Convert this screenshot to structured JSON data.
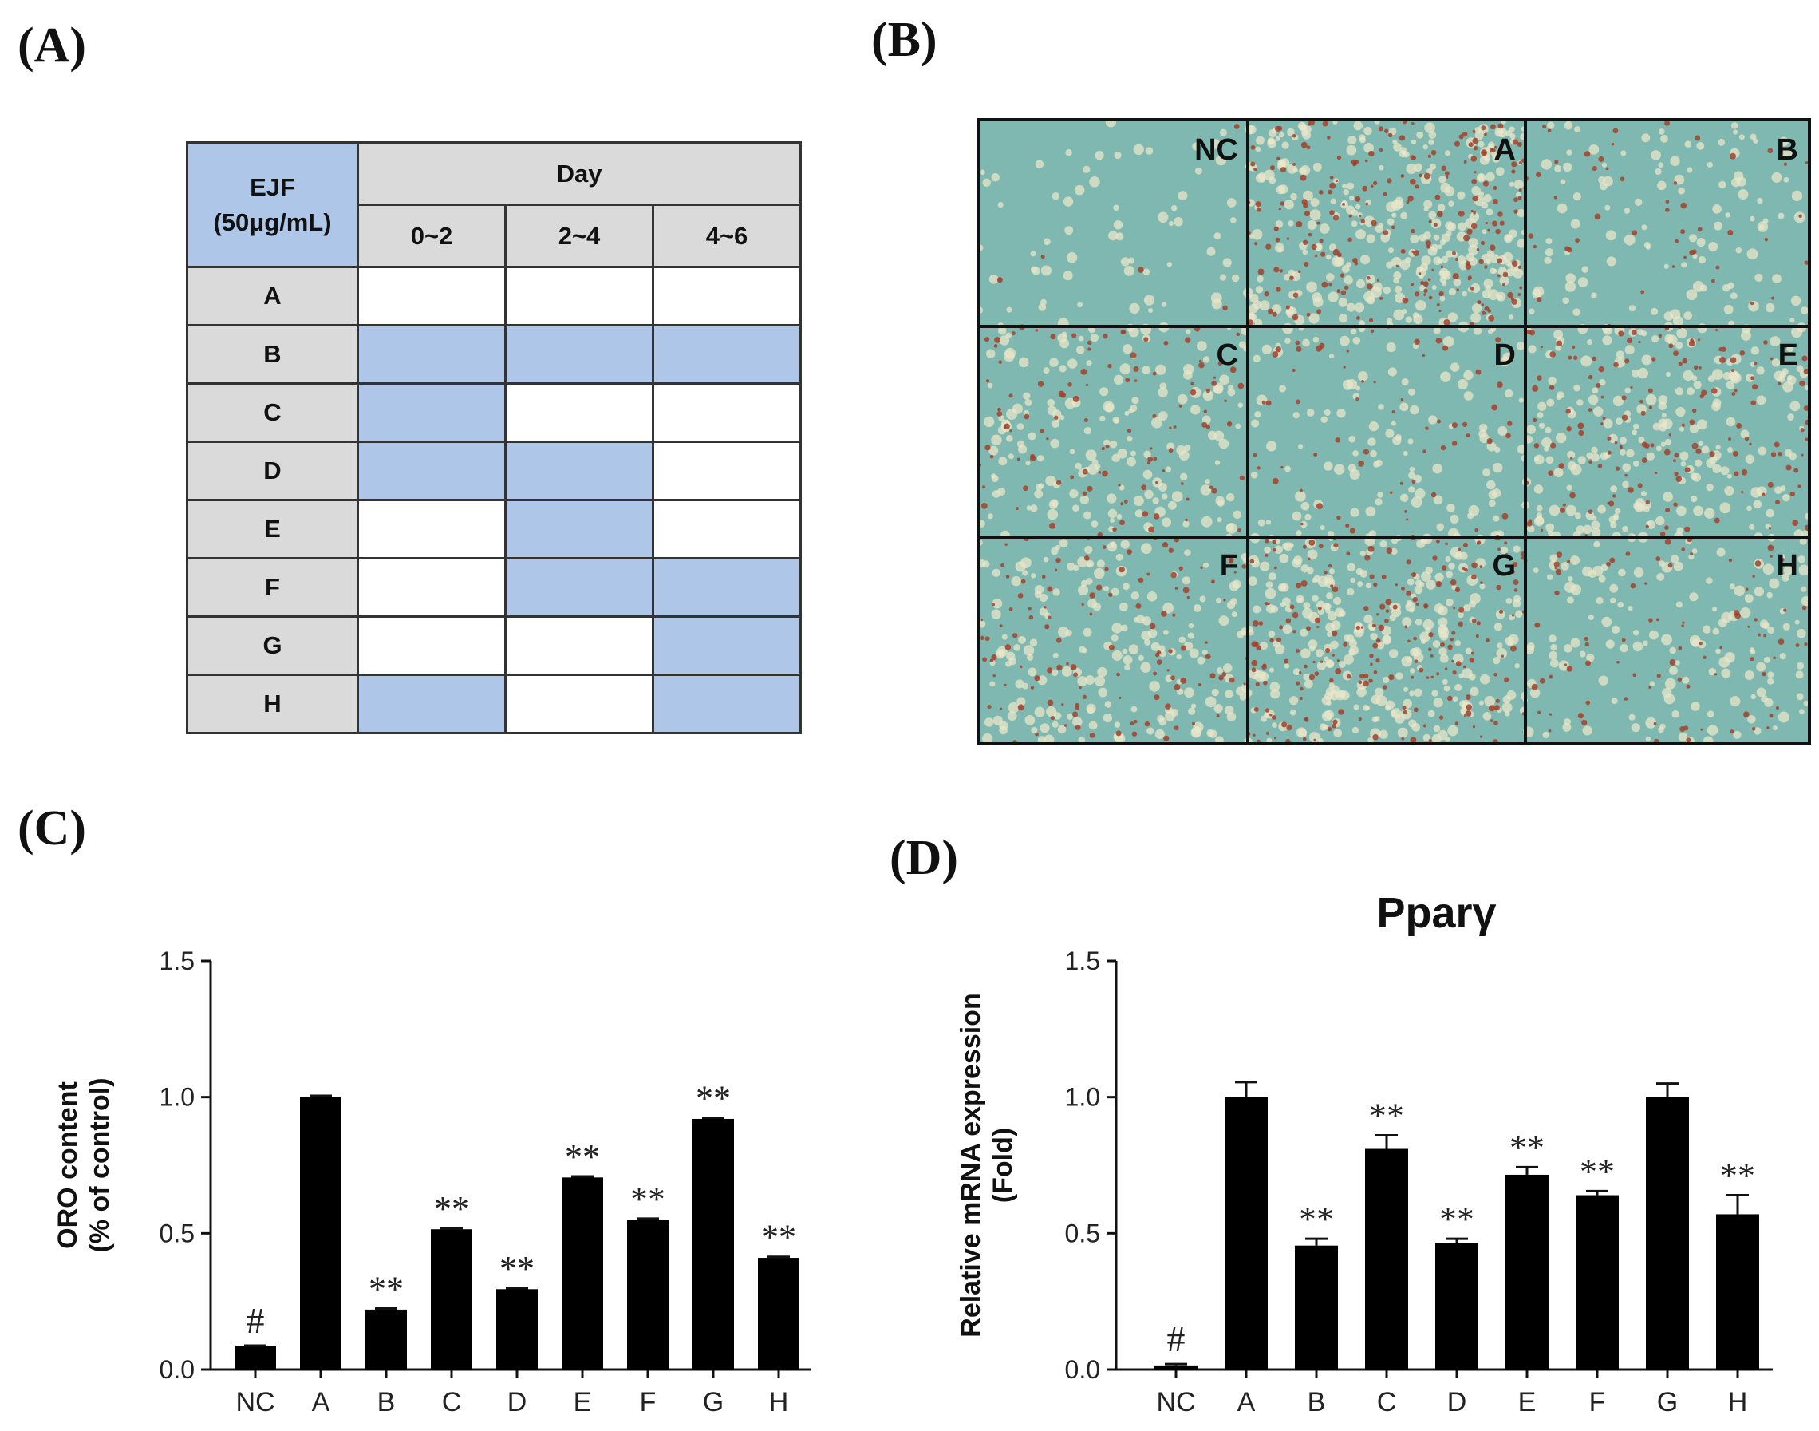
{
  "panels": {
    "a": "(A)",
    "b": "(B)",
    "c": "(C)",
    "d": "(D)"
  },
  "table": {
    "corner_line1": "EJF",
    "corner_line2": "(50μg/mL)",
    "day_header": "Day",
    "periods": [
      "0~2",
      "2~4",
      "4~6"
    ],
    "rows": [
      {
        "label": "A",
        "treated": [
          false,
          false,
          false
        ]
      },
      {
        "label": "B",
        "treated": [
          true,
          true,
          true
        ]
      },
      {
        "label": "C",
        "treated": [
          true,
          false,
          false
        ]
      },
      {
        "label": "D",
        "treated": [
          true,
          true,
          false
        ]
      },
      {
        "label": "E",
        "treated": [
          false,
          true,
          false
        ]
      },
      {
        "label": "F",
        "treated": [
          false,
          true,
          true
        ]
      },
      {
        "label": "G",
        "treated": [
          false,
          false,
          true
        ]
      },
      {
        "label": "H",
        "treated": [
          true,
          false,
          true
        ]
      }
    ],
    "colors": {
      "treated": "#aec6e8",
      "header": "#dadada"
    }
  },
  "micrographs": {
    "labels": [
      "NC",
      "A",
      "B",
      "C",
      "D",
      "E",
      "F",
      "G",
      "H"
    ],
    "stain_density": [
      0.02,
      0.95,
      0.2,
      0.45,
      0.25,
      0.65,
      0.5,
      0.9,
      0.35
    ],
    "colors": {
      "background": "#7fb8b0",
      "cell": "#e9e6c9",
      "lipid": "#a4402a"
    }
  },
  "chart_data": [
    {
      "type": "bar",
      "panel": "C",
      "title": "",
      "categories": [
        "NC",
        "A",
        "B",
        "C",
        "D",
        "E",
        "F",
        "G",
        "H"
      ],
      "values": [
        0.085,
        1.0,
        0.22,
        0.515,
        0.295,
        0.705,
        0.55,
        0.92,
        0.41
      ],
      "errors": [
        0.003,
        0.005,
        0.004,
        0.004,
        0.004,
        0.004,
        0.004,
        0.004,
        0.004
      ],
      "annotations": [
        "#",
        "",
        "**",
        "**",
        "**",
        "**",
        "**",
        "**",
        "**"
      ],
      "ylabel_line1": "ORO content",
      "ylabel_line2": "(% of control)",
      "xlabel": "",
      "ylim": [
        0,
        1.5
      ],
      "yticks": [
        "0.0",
        "0.5",
        "1.0",
        "1.5"
      ],
      "bar_color": "#000000"
    },
    {
      "type": "bar",
      "panel": "D",
      "title": "Pparγ",
      "categories": [
        "NC",
        "A",
        "B",
        "C",
        "D",
        "E",
        "F",
        "G",
        "H"
      ],
      "values": [
        0.015,
        1.0,
        0.455,
        0.81,
        0.465,
        0.715,
        0.64,
        1.0,
        0.57
      ],
      "errors": [
        0.005,
        0.055,
        0.025,
        0.05,
        0.015,
        0.028,
        0.015,
        0.05,
        0.07
      ],
      "annotations": [
        "#",
        "",
        "**",
        "**",
        "**",
        "**",
        "**",
        "",
        "**"
      ],
      "ylabel_line1": "Relative mRNA expression",
      "ylabel_line2": "(Fold)",
      "xlabel": "",
      "ylim": [
        0,
        1.5
      ],
      "yticks": [
        "0.0",
        "0.5",
        "1.0",
        "1.5"
      ],
      "bar_color": "#000000"
    }
  ]
}
